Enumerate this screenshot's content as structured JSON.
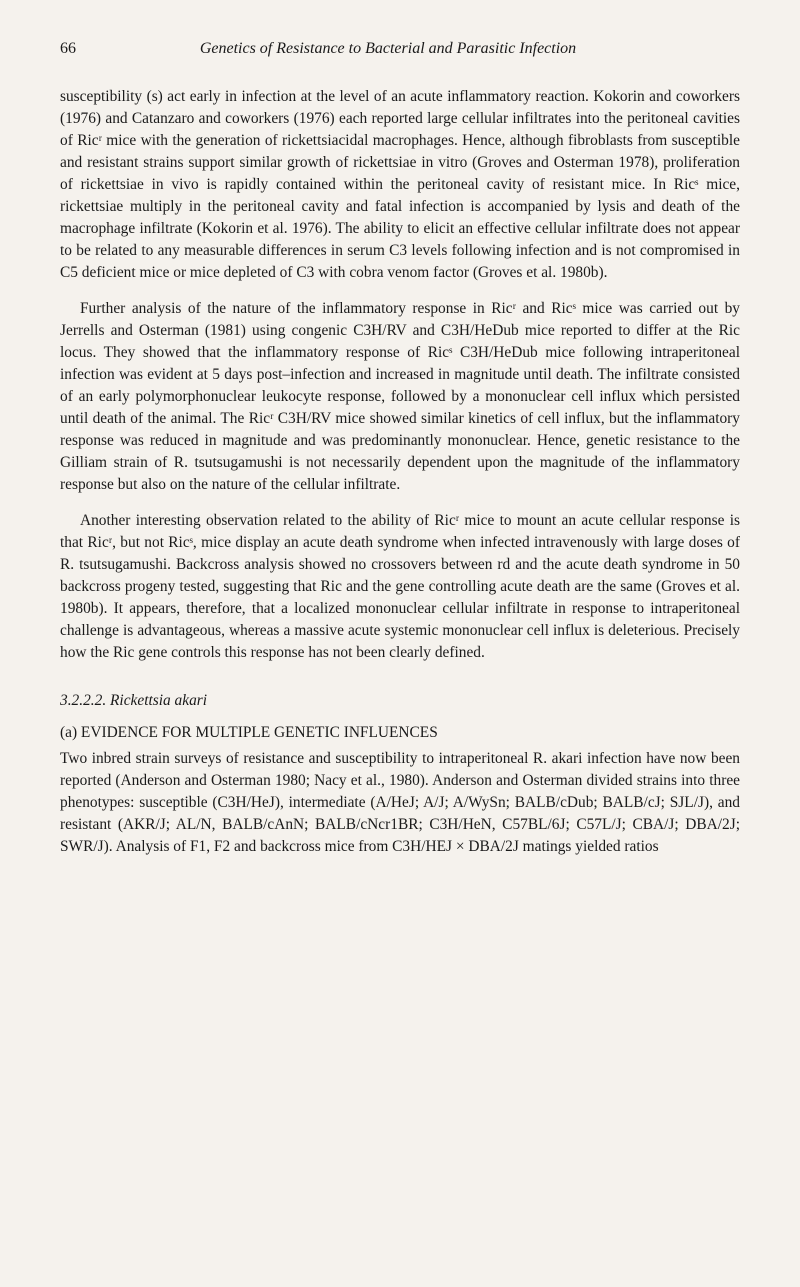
{
  "page_number": "66",
  "running_title": "Genetics of Resistance to Bacterial and Parasitic Infection",
  "paragraphs": {
    "p1": "susceptibility (s) act early in infection at the level of an acute inflammatory reaction. Kokorin and coworkers (1976) and Catanzaro and coworkers (1976) each reported large cellular infiltrates into the peritoneal cavities of Ricʳ mice with the generation of rickettsiacidal macrophages. Hence, although fibroblasts from susceptible and resistant strains support similar growth of rickettsiae in vitro (Groves and Osterman 1978), proliferation of rickettsiae in vivo is rapidly contained within the peritoneal cavity of resistant mice. In Ricˢ mice, rickettsiae multiply in the peritoneal cavity and fatal infection is accompanied by lysis and death of the macrophage infiltrate (Kokorin et al. 1976). The ability to elicit an effective cellular infiltrate does not appear to be related to any measurable differences in serum C3 levels following infection and is not compromised in C5 deficient mice or mice depleted of C3 with cobra venom factor (Groves et al. 1980b).",
    "p2": "Further analysis of the nature of the inflammatory response in Ricʳ and Ricˢ mice was carried out by Jerrells and Osterman (1981) using congenic C3H/RV and C3H/HeDub mice reported to differ at the Ric locus. They showed that the inflammatory response of Ricˢ C3H/HeDub mice following intraperitoneal infection was evident at 5 days post–infection and increased in magnitude until death. The infiltrate consisted of an early polymorphonuclear leukocyte response, followed by a mononuclear cell influx which persisted until death of the animal. The Ricʳ C3H/RV mice showed similar kinetics of cell influx, but the inflammatory response was reduced in magnitude and was predominantly mononuclear. Hence, genetic resistance to the Gilliam strain of R. tsutsugamushi is not necessarily dependent upon the magnitude of the inflammatory response but also on the nature of the cellular infiltrate.",
    "p3": "Another interesting observation related to the ability of Ricʳ mice to mount an acute cellular response is that Ricʳ, but not Ricˢ, mice display an acute death syndrome when infected intravenously with large doses of R. tsutsugamushi. Backcross analysis showed no crossovers between rd and the acute death syndrome in 50 backcross progeny tested, suggesting that Ric and the gene controlling acute death are the same (Groves et al. 1980b). It appears, therefore, that a localized mononuclear cellular infiltrate in response to intraperitoneal challenge is advantageous, whereas a massive acute systemic mononuclear cell influx is deleterious. Precisely how the Ric gene controls this response has not been clearly defined.",
    "section_heading": "3.2.2.2.  Rickettsia akari",
    "subsection_label": "(a) EVIDENCE FOR MULTIPLE GENETIC INFLUENCES",
    "p4": "Two inbred strain surveys of resistance and susceptibility to intraperitoneal R. akari infection have now been reported (Anderson and Osterman 1980; Nacy et al., 1980). Anderson and Osterman divided strains into three phenotypes: susceptible (C3H/HeJ), intermediate (A/HeJ; A/J; A/WySn; BALB/cDub; BALB/cJ; SJL/J), and resistant (AKR/J; AL/N, BALB/cAnN; BALB/cNcr1BR; C3H/HeN, C57BL/6J; C57L/J; CBA/J; DBA/2J; SWR/J). Analysis of F1, F2 and backcross mice from C3H/HEJ × DBA/2J matings yielded ratios"
  },
  "styling": {
    "background_color": "#f5f2ed",
    "text_color": "#1a1a1a",
    "body_font_size": 15.4,
    "line_height": 1.43,
    "font_family": "Georgia, Times New Roman, serif"
  }
}
